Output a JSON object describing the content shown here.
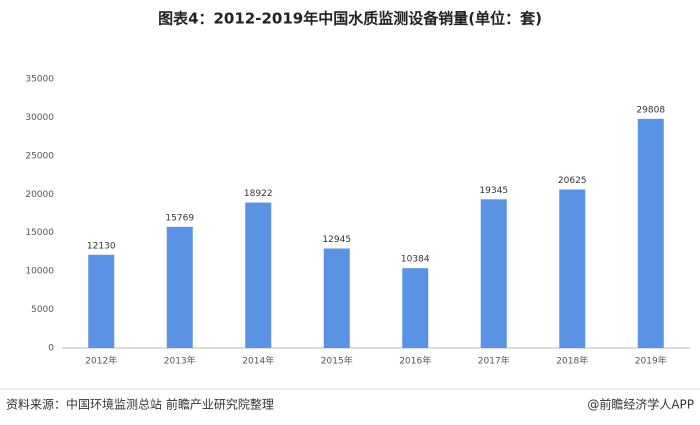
{
  "chart_data": {
    "type": "bar",
    "title": "图表4：2012-2019年中国水质监测设备销量(单位：套)",
    "categories": [
      "2012年",
      "2013年",
      "2014年",
      "2015年",
      "2016年",
      "2017年",
      "2018年",
      "2019年"
    ],
    "values": [
      12130,
      15769,
      18922,
      12945,
      10384,
      19345,
      20625,
      29808
    ],
    "color": "#5b93e4",
    "ylim": [
      0,
      35000
    ],
    "yticks": [
      0,
      5000,
      10000,
      15000,
      20000,
      25000,
      30000,
      35000
    ],
    "grid": false
  },
  "footer": {
    "source": "资料来源：中国环境监测总站 前瞻产业研究院整理",
    "credit": "@前瞻经济学人APP"
  }
}
